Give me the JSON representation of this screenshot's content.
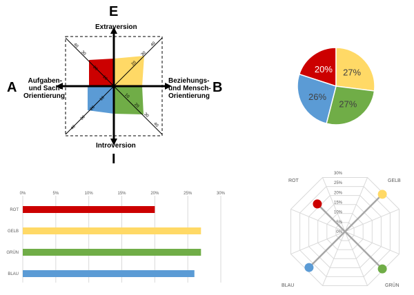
{
  "colors": {
    "rot": "#cc0000",
    "gelb": "#ffd966",
    "gruen": "#70ad47",
    "blau": "#5b9bd5",
    "grid": "#d9d9d9",
    "spider_line": "#a6a6a6"
  },
  "quadrant": {
    "letter_top": "E",
    "letter_left": "A",
    "letter_right": "B",
    "letter_bottom": "I",
    "label_top": "Extraversion",
    "label_bottom": "Introversion",
    "label_left_lines": [
      "Aufgaben-",
      "und Sach-",
      "Orientierung"
    ],
    "label_right_lines": [
      "Beziehungs-",
      "und Mensch-",
      "Orientierung"
    ],
    "diagonal_ticks_outer": [
      "40",
      "30"
    ],
    "diagonal_ticks_inner": [
      "10",
      "20",
      "30",
      "40"
    ]
  },
  "chart_data": [
    {
      "type": "pie",
      "categories": [
        "ROT",
        "GELB",
        "GRÜN",
        "BLAU"
      ],
      "values": [
        20,
        27,
        27,
        26
      ],
      "labels": [
        "20%",
        "27%",
        "27%",
        "26%"
      ],
      "colors": [
        "#cc0000",
        "#ffd966",
        "#70ad47",
        "#5b9bd5"
      ]
    },
    {
      "type": "bar",
      "orientation": "horizontal",
      "categories": [
        "ROT",
        "GELB",
        "GRÜN",
        "BLAU"
      ],
      "values": [
        20,
        27,
        27,
        26
      ],
      "xlim": [
        0,
        30
      ],
      "ticks": [
        "0%",
        "5%",
        "10%",
        "15%",
        "20%",
        "25%",
        "30%"
      ],
      "colors": [
        "#cc0000",
        "#ffd966",
        "#70ad47",
        "#5b9bd5"
      ],
      "grid": true
    },
    {
      "type": "radar",
      "categories": [
        "ROT",
        "GELB",
        "GRÜN",
        "BLAU"
      ],
      "values": [
        20,
        27,
        27,
        26
      ],
      "rlim": [
        0,
        30
      ],
      "ticks": [
        "0%",
        "5%",
        "10%",
        "15%",
        "20%",
        "25%",
        "30%"
      ],
      "colors": [
        "#cc0000",
        "#ffd966",
        "#70ad47",
        "#5b9bd5"
      ],
      "grid": true
    }
  ]
}
